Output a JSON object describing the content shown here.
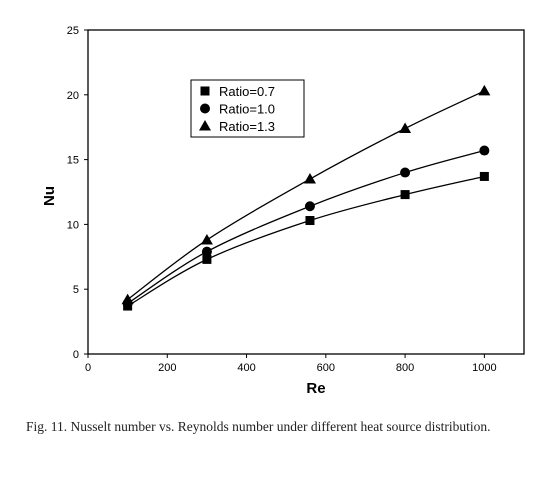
{
  "chart_data": {
    "type": "line",
    "title": "",
    "xlabel": "Re",
    "ylabel": "Nu",
    "xlim": [
      0,
      1100
    ],
    "ylim": [
      0,
      25
    ],
    "xticks": [
      0,
      200,
      400,
      600,
      800,
      1000
    ],
    "yticks": [
      0,
      5,
      10,
      15,
      20,
      25
    ],
    "grid": false,
    "legend_position": "top-left",
    "x": [
      100,
      300,
      560,
      800,
      1000
    ],
    "series": [
      {
        "name": "Ratio=0.7",
        "marker": "square",
        "values": [
          3.7,
          7.3,
          10.3,
          12.3,
          13.7
        ]
      },
      {
        "name": "Ratio=1.0",
        "marker": "circle",
        "values": [
          3.9,
          7.9,
          11.4,
          14.0,
          15.7
        ]
      },
      {
        "name": "Ratio=1.3",
        "marker": "triangle",
        "values": [
          4.2,
          8.8,
          13.5,
          17.4,
          20.3
        ]
      }
    ]
  },
  "caption": "Fig. 11.  Nusselt number vs. Reynolds number under different heat source distribution."
}
